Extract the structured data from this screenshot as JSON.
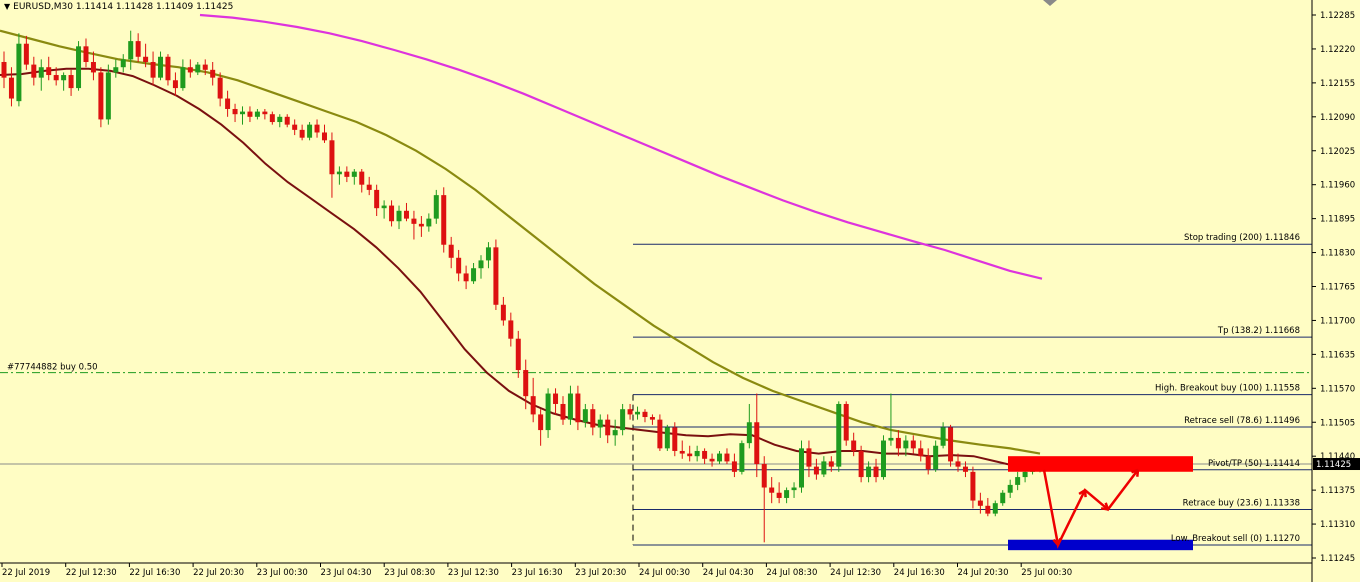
{
  "window": {
    "symbol_line": "EURUSD,M30  1.11414 1.11428 1.11409 1.11425",
    "menu_arrow": "triangle-down-icon"
  },
  "current_price": "1.11425",
  "order_label": "#77744882 buy 0.50",
  "colors": {
    "background": "#fffdc4",
    "bull": "#1f9b1f",
    "bear": "#dd1111",
    "ma_fast": "#7a1010",
    "ma_mid": "#8a8a10",
    "ma_slow": "#dd33dd",
    "level_line": "#1a2a6a",
    "order_line": "#1f9b1f",
    "red_zone": "#ff0000",
    "blue_zone": "#0000cc",
    "projection": "#ee0000"
  },
  "y_axis_ticks": [
    "1.12285",
    "1.12220",
    "1.12155",
    "1.12090",
    "1.12025",
    "1.11960",
    "1.11895",
    "1.11830",
    "1.11765",
    "1.11700",
    "1.11635",
    "1.11570",
    "1.11505",
    "1.11440",
    "1.11375",
    "1.11310",
    "1.11245"
  ],
  "x_axis_ticks": [
    "22 Jul 2019",
    "22 Jul 12:30",
    "22 Jul 16:30",
    "22 Jul 20:30",
    "23 Jul 00:30",
    "23 Jul 04:30",
    "23 Jul 08:30",
    "23 Jul 12:30",
    "23 Jul 16:30",
    "23 Jul 20:30",
    "24 Jul 00:30",
    "24 Jul 04:30",
    "24 Jul 08:30",
    "24 Jul 12:30",
    "24 Jul 16:30",
    "24 Jul 20:30",
    "25 Jul 00:30"
  ],
  "levels": [
    {
      "label": "Stop trading (200)  1.11846",
      "price": 1.11846
    },
    {
      "label": "Tp (138.2)  1.11668",
      "price": 1.11668
    },
    {
      "label": "High. Breakout buy (100)  1.11558",
      "price": 1.11558
    },
    {
      "label": "Retrace sell (78.6)  1.11496",
      "price": 1.11496
    },
    {
      "label": "Pivot/TP (50)  1.11414",
      "price": 1.11414
    },
    {
      "label": "Retrace buy (23.6)  1.11338",
      "price": 1.11338
    },
    {
      "label": "Low. Breakout sell (0)  1.11270",
      "price": 1.1127
    }
  ],
  "chart_data": {
    "type": "candlestick",
    "title": "EURUSD,M30",
    "ylim": [
      1.11245,
      1.12285
    ],
    "candles_ohlc": [
      [
        1.12195,
        1.12215,
        1.12145,
        1.12165
      ],
      [
        1.12165,
        1.12185,
        1.1211,
        1.12125
      ],
      [
        1.1212,
        1.1225,
        1.1211,
        1.1223
      ],
      [
        1.1223,
        1.12245,
        1.1218,
        1.1219
      ],
      [
        1.1219,
        1.12205,
        1.1215,
        1.12165
      ],
      [
        1.12165,
        1.122,
        1.1214,
        1.12185
      ],
      [
        1.12185,
        1.12205,
        1.1216,
        1.1217
      ],
      [
        1.1217,
        1.12185,
        1.1215,
        1.1216
      ],
      [
        1.1216,
        1.12175,
        1.1214,
        1.1217
      ],
      [
        1.1217,
        1.1218,
        1.1213,
        1.12145
      ],
      [
        1.12145,
        1.12235,
        1.1214,
        1.12225
      ],
      [
        1.12225,
        1.1224,
        1.12185,
        1.12195
      ],
      [
        1.12195,
        1.12215,
        1.1216,
        1.12175
      ],
      [
        1.12175,
        1.12185,
        1.1207,
        1.12085
      ],
      [
        1.12085,
        1.1219,
        1.12075,
        1.12175
      ],
      [
        1.12175,
        1.122,
        1.12165,
        1.12185
      ],
      [
        1.12185,
        1.1221,
        1.12175,
        1.122
      ],
      [
        1.122,
        1.12255,
        1.1218,
        1.12235
      ],
      [
        1.12235,
        1.1225,
        1.12195,
        1.12205
      ],
      [
        1.12205,
        1.1223,
        1.12185,
        1.12195
      ],
      [
        1.12195,
        1.12215,
        1.1215,
        1.12165
      ],
      [
        1.12165,
        1.12215,
        1.1216,
        1.12205
      ],
      [
        1.12205,
        1.1221,
        1.1215,
        1.1216
      ],
      [
        1.1216,
        1.12175,
        1.1213,
        1.12145
      ],
      [
        1.12145,
        1.122,
        1.1214,
        1.12185
      ],
      [
        1.12185,
        1.122,
        1.12165,
        1.12175
      ],
      [
        1.12175,
        1.12195,
        1.1217,
        1.1219
      ],
      [
        1.1219,
        1.122,
        1.1217,
        1.1218
      ],
      [
        1.1218,
        1.12195,
        1.1215,
        1.12165
      ],
      [
        1.12165,
        1.12175,
        1.1211,
        1.12125
      ],
      [
        1.12125,
        1.1214,
        1.1209,
        1.12105
      ],
      [
        1.12105,
        1.12115,
        1.1208,
        1.12095
      ],
      [
        1.12095,
        1.1211,
        1.12075,
        1.121
      ],
      [
        1.121,
        1.1211,
        1.1208,
        1.1209
      ],
      [
        1.1209,
        1.12105,
        1.12085,
        1.121
      ],
      [
        1.121,
        1.12105,
        1.12085,
        1.12095
      ],
      [
        1.12095,
        1.121,
        1.12075,
        1.1208
      ],
      [
        1.1208,
        1.12095,
        1.1207,
        1.1209
      ],
      [
        1.1209,
        1.12095,
        1.1207,
        1.12075
      ],
      [
        1.12075,
        1.12085,
        1.12055,
        1.12065
      ],
      [
        1.12065,
        1.12075,
        1.12045,
        1.1205
      ],
      [
        1.1205,
        1.1208,
        1.12045,
        1.12075
      ],
      [
        1.12075,
        1.12085,
        1.1205,
        1.1206
      ],
      [
        1.1206,
        1.12075,
        1.1204,
        1.12045
      ],
      [
        1.12045,
        1.1206,
        1.11935,
        1.1198
      ],
      [
        1.1198,
        1.11995,
        1.1196,
        1.11985
      ],
      [
        1.11985,
        1.11995,
        1.11965,
        1.11975
      ],
      [
        1.11975,
        1.1199,
        1.1196,
        1.11985
      ],
      [
        1.11985,
        1.1199,
        1.11945,
        1.1196
      ],
      [
        1.1196,
        1.11975,
        1.1194,
        1.1195
      ],
      [
        1.1195,
        1.1196,
        1.119,
        1.11915
      ],
      [
        1.11915,
        1.1193,
        1.11895,
        1.1192
      ],
      [
        1.1192,
        1.1193,
        1.1188,
        1.1189
      ],
      [
        1.1189,
        1.1192,
        1.11875,
        1.1191
      ],
      [
        1.1191,
        1.11925,
        1.1189,
        1.11895
      ],
      [
        1.11895,
        1.1191,
        1.11855,
        1.11885
      ],
      [
        1.11885,
        1.119,
        1.1186,
        1.1188
      ],
      [
        1.1188,
        1.11905,
        1.1187,
        1.11895
      ],
      [
        1.11895,
        1.1195,
        1.11885,
        1.1194
      ],
      [
        1.1194,
        1.11955,
        1.1183,
        1.11845
      ],
      [
        1.11845,
        1.1186,
        1.118,
        1.1182
      ],
      [
        1.1182,
        1.11835,
        1.11775,
        1.1179
      ],
      [
        1.1179,
        1.11805,
        1.1176,
        1.11775
      ],
      [
        1.11775,
        1.1181,
        1.1177,
        1.118
      ],
      [
        1.118,
        1.11825,
        1.1178,
        1.11815
      ],
      [
        1.11815,
        1.1185,
        1.118,
        1.1184
      ],
      [
        1.1184,
        1.11855,
        1.1172,
        1.1173
      ],
      [
        1.1173,
        1.11745,
        1.1169,
        1.117
      ],
      [
        1.117,
        1.11715,
        1.1165,
        1.11665
      ],
      [
        1.11665,
        1.1168,
        1.1159,
        1.11605
      ],
      [
        1.11605,
        1.11625,
        1.1153,
        1.11555
      ],
      [
        1.11555,
        1.1159,
        1.11505,
        1.1152
      ],
      [
        1.1152,
        1.1153,
        1.1146,
        1.1149
      ],
      [
        1.1149,
        1.1157,
        1.11475,
        1.1156
      ],
      [
        1.1156,
        1.1157,
        1.1152,
        1.1154
      ],
      [
        1.1154,
        1.11555,
        1.115,
        1.1151
      ],
      [
        1.1151,
        1.11575,
        1.115,
        1.1156
      ],
      [
        1.1156,
        1.11575,
        1.1149,
        1.11505
      ],
      [
        1.11505,
        1.1154,
        1.11495,
        1.1153
      ],
      [
        1.1153,
        1.1154,
        1.1148,
        1.11495
      ],
      [
        1.11495,
        1.1152,
        1.11475,
        1.1151
      ],
      [
        1.1151,
        1.1152,
        1.11465,
        1.1148
      ],
      [
        1.1148,
        1.1151,
        1.1146,
        1.1149
      ],
      [
        1.1149,
        1.1154,
        1.1148,
        1.1153
      ],
      [
        1.1153,
        1.1154,
        1.1151,
        1.1152
      ],
      [
        1.1152,
        1.11535,
        1.1151,
        1.11525
      ],
      [
        1.11525,
        1.1153,
        1.11505,
        1.11515
      ],
      [
        1.11515,
        1.1152,
        1.115,
        1.1151
      ],
      [
        1.1151,
        1.1152,
        1.1145,
        1.11455
      ],
      [
        1.11455,
        1.115,
        1.1145,
        1.11495
      ],
      [
        1.11495,
        1.11505,
        1.1144,
        1.1145
      ],
      [
        1.1145,
        1.1147,
        1.11435,
        1.11445
      ],
      [
        1.11445,
        1.1146,
        1.1143,
        1.1144
      ],
      [
        1.1144,
        1.1146,
        1.1143,
        1.1145
      ],
      [
        1.1145,
        1.11455,
        1.11425,
        1.11435
      ],
      [
        1.11435,
        1.11445,
        1.1142,
        1.1143
      ],
      [
        1.1143,
        1.1145,
        1.11425,
        1.11445
      ],
      [
        1.11445,
        1.11455,
        1.11425,
        1.1143
      ],
      [
        1.1143,
        1.11445,
        1.114,
        1.1141
      ],
      [
        1.1141,
        1.1147,
        1.11405,
        1.11465
      ],
      [
        1.11465,
        1.1154,
        1.11455,
        1.11505
      ],
      [
        1.11505,
        1.1156,
        1.114,
        1.11425
      ],
      [
        1.11425,
        1.1144,
        1.11275,
        1.1138
      ],
      [
        1.1138,
        1.114,
        1.1135,
        1.1137
      ],
      [
        1.1137,
        1.1139,
        1.1135,
        1.1136
      ],
      [
        1.1136,
        1.1138,
        1.1135,
        1.11375
      ],
      [
        1.11375,
        1.1139,
        1.1136,
        1.1138
      ],
      [
        1.1138,
        1.1147,
        1.1137,
        1.11455
      ],
      [
        1.11455,
        1.1147,
        1.114,
        1.1142
      ],
      [
        1.1142,
        1.11435,
        1.11395,
        1.11405
      ],
      [
        1.11405,
        1.1144,
        1.114,
        1.1143
      ],
      [
        1.1143,
        1.1144,
        1.1141,
        1.1142
      ],
      [
        1.1142,
        1.11545,
        1.1141,
        1.1154
      ],
      [
        1.1154,
        1.11545,
        1.1146,
        1.1147
      ],
      [
        1.1147,
        1.11485,
        1.1144,
        1.1145
      ],
      [
        1.1145,
        1.1146,
        1.1139,
        1.114
      ],
      [
        1.114,
        1.1143,
        1.1139,
        1.1142
      ],
      [
        1.1142,
        1.11435,
        1.1139,
        1.114
      ],
      [
        1.114,
        1.1148,
        1.11395,
        1.1147
      ],
      [
        1.1147,
        1.1156,
        1.1146,
        1.11475
      ],
      [
        1.11475,
        1.1149,
        1.1144,
        1.11455
      ],
      [
        1.11455,
        1.1148,
        1.1144,
        1.1147
      ],
      [
        1.1147,
        1.1148,
        1.11445,
        1.11455
      ],
      [
        1.11455,
        1.1147,
        1.1143,
        1.1144
      ],
      [
        1.1144,
        1.11455,
        1.11405,
        1.11415
      ],
      [
        1.11415,
        1.1147,
        1.1141,
        1.1146
      ],
      [
        1.1146,
        1.11505,
        1.11455,
        1.11495
      ],
      [
        1.11495,
        1.115,
        1.1142,
        1.1143
      ],
      [
        1.1143,
        1.11445,
        1.1141,
        1.1142
      ],
      [
        1.1142,
        1.1143,
        1.114,
        1.1141
      ],
      [
        1.1141,
        1.1142,
        1.1134,
        1.11355
      ],
      [
        1.11355,
        1.1137,
        1.1133,
        1.11345
      ],
      [
        1.11345,
        1.1136,
        1.11325,
        1.1133
      ],
      [
        1.1133,
        1.11355,
        1.11325,
        1.1135
      ],
      [
        1.1135,
        1.11375,
        1.11345,
        1.1137
      ],
      [
        1.1137,
        1.11395,
        1.1136,
        1.11385
      ],
      [
        1.11385,
        1.1141,
        1.11375,
        1.114
      ],
      [
        1.114,
        1.1142,
        1.1139,
        1.1141
      ],
      [
        1.1141,
        1.11428,
        1.11405,
        1.11418
      ],
      [
        1.11414,
        1.11428,
        1.11409,
        1.11425
      ]
    ],
    "ma_fast": [
      1.1217,
      1.12172,
      1.12178,
      1.12182,
      1.12182,
      1.12178,
      1.12168,
      1.1215,
      1.1213,
      1.12105,
      1.12075,
      1.1204,
      1.12,
      1.11965,
      1.11935,
      1.11905,
      1.11875,
      1.1184,
      1.118,
      1.11755,
      1.117,
      1.11645,
      1.116,
      1.11565,
      1.1154,
      1.11522,
      1.1151,
      1.115,
      1.11495,
      1.1149,
      1.11485,
      1.1148,
      1.11478,
      1.11482,
      1.1148,
      1.11462,
      1.1145,
      1.11445,
      1.1145,
      1.1145,
      1.11445,
      1.11445,
      1.1144,
      1.11442,
      1.1144,
      1.1143,
      1.1142,
      1.11414
    ],
    "ma_mid": [
      1.12255,
      1.1224,
      1.12225,
      1.12212,
      1.122,
      1.12192,
      1.12185,
      1.12175,
      1.1216,
      1.1214,
      1.1212,
      1.121,
      1.1208,
      1.12055,
      1.12025,
      1.1199,
      1.1195,
      1.11905,
      1.1186,
      1.11815,
      1.1177,
      1.1173,
      1.1169,
      1.11655,
      1.1162,
      1.1159,
      1.11565,
      1.11545,
      1.11525,
      1.11505,
      1.1149,
      1.1148,
      1.1147,
      1.11462,
      1.11455,
      1.11445
    ],
    "ma_slow": [
      1.12285,
      1.1228,
      1.12272,
      1.12262,
      1.1225,
      1.12235,
      1.12218,
      1.122,
      1.1218,
      1.12158,
      1.12134,
      1.12108,
      1.12082,
      1.12056,
      1.1203,
      1.12004,
      1.11978,
      1.11954,
      1.1193,
      1.11908,
      1.11888,
      1.1187,
      1.11852,
      1.11835,
      1.11815,
      1.11795,
      1.1178
    ],
    "projection_path": [
      1.11414,
      1.1127,
      1.11375,
      1.11338,
      1.11414
    ]
  }
}
